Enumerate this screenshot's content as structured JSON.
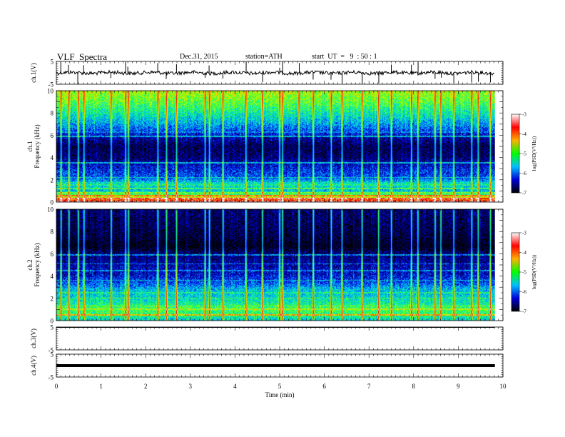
{
  "header": {
    "title": "VLF  Spectra",
    "date": "Dec.31, 2015",
    "station": "station=ATH",
    "start": "start  UT  =   9  : 50 : 1"
  },
  "colorbar": {
    "label": "log(PSD(V²/Hz))",
    "ticks": [
      "-3",
      "-4",
      "-5",
      "-6",
      "-7"
    ],
    "stops": [
      "#ffffff",
      "#ff0000",
      "#ffb000",
      "#00ff00",
      "#00c0ff",
      "#0000d8",
      "#000000"
    ]
  },
  "chart_data": [
    {
      "type": "line",
      "name": "ch1-waveform",
      "ylabel": "ch.1(V)",
      "ylim": [
        -5,
        5
      ],
      "yticks": [
        "5",
        "-5"
      ],
      "xlim": [
        0,
        10
      ],
      "baseline_value": 0,
      "spikes": [
        0.1,
        0.27,
        0.48,
        0.61,
        1.22,
        1.55,
        1.6,
        2.27,
        2.46,
        2.69,
        3.33,
        3.42,
        3.73,
        4.25,
        4.62,
        5.0,
        5.07,
        5.44,
        5.75,
        6.15,
        6.4,
        6.85,
        7.22,
        7.5,
        7.95,
        8.1,
        8.48,
        8.62,
        8.9,
        9.3,
        9.45,
        9.72
      ]
    },
    {
      "type": "heatmap",
      "name": "ch1-spectrogram",
      "ylabel": "ch.1\nFrequency  (kHz)",
      "xlim": [
        0,
        10
      ],
      "xmax_data": 9.82,
      "ylim": [
        0,
        10
      ],
      "yticks": [
        "0",
        "2",
        "4",
        "6",
        "8",
        "10"
      ],
      "color_scale": [
        -7,
        -3
      ],
      "profile": [
        {
          "f": 0.0,
          "v": -3.2
        },
        {
          "f": 0.3,
          "v": -4.2
        },
        {
          "f": 0.6,
          "v": -5.0
        },
        {
          "f": 1.0,
          "v": -5.6
        },
        {
          "f": 1.6,
          "v": -5.4
        },
        {
          "f": 2.2,
          "v": -6.0
        },
        {
          "f": 2.8,
          "v": -6.1
        },
        {
          "f": 3.3,
          "v": -6.3
        },
        {
          "f": 4.0,
          "v": -6.6
        },
        {
          "f": 5.0,
          "v": -6.7
        },
        {
          "f": 5.8,
          "v": -6.4
        },
        {
          "f": 6.4,
          "v": -6.0
        },
        {
          "f": 7.0,
          "v": -5.7
        },
        {
          "f": 8.0,
          "v": -5.3
        },
        {
          "f": 9.0,
          "v": -4.9
        },
        {
          "f": 10.0,
          "v": -4.6
        }
      ],
      "lines": [
        {
          "f": 0.3,
          "v": -3.3
        },
        {
          "f": 0.55,
          "v": -4.0
        },
        {
          "f": 0.8,
          "v": -4.8
        },
        {
          "f": 1.2,
          "v": -5.0
        },
        {
          "f": 1.5,
          "v": -5.2
        },
        {
          "f": 1.7,
          "v": -5.4
        },
        {
          "f": 2.2,
          "v": -5.5
        },
        {
          "f": 3.5,
          "v": -5.6
        },
        {
          "f": 5.9,
          "v": -5.6
        },
        {
          "f": 6.3,
          "v": -5.8
        }
      ],
      "sferics": [
        0.1,
        0.27,
        0.48,
        0.61,
        1.22,
        1.55,
        1.6,
        2.27,
        2.46,
        2.69,
        3.33,
        3.42,
        3.73,
        4.25,
        4.62,
        5.0,
        5.07,
        5.44,
        5.75,
        6.15,
        6.4,
        6.85,
        7.22,
        7.5,
        7.95,
        8.1,
        8.48,
        8.62,
        8.9,
        9.3,
        9.45,
        9.72
      ]
    },
    {
      "type": "heatmap",
      "name": "ch2-spectrogram",
      "ylabel": "ch.2\nFrequency  (kHz)",
      "xlim": [
        0,
        10
      ],
      "xmax_data": 9.82,
      "ylim": [
        0,
        10
      ],
      "yticks": [
        "0",
        "2",
        "4",
        "6",
        "8",
        "10"
      ],
      "color_scale": [
        -7,
        -3
      ],
      "profile": [
        {
          "f": 0.0,
          "v": -5.5
        },
        {
          "f": 0.4,
          "v": -5.2
        },
        {
          "f": 1.0,
          "v": -5.0
        },
        {
          "f": 1.6,
          "v": -5.3
        },
        {
          "f": 2.2,
          "v": -5.5
        },
        {
          "f": 2.8,
          "v": -5.6
        },
        {
          "f": 3.4,
          "v": -6.0
        },
        {
          "f": 4.2,
          "v": -6.3
        },
        {
          "f": 5.0,
          "v": -6.4
        },
        {
          "f": 6.0,
          "v": -6.6
        },
        {
          "f": 6.7,
          "v": -7.0
        },
        {
          "f": 7.5,
          "v": -6.8
        },
        {
          "f": 8.5,
          "v": -6.7
        },
        {
          "f": 10.0,
          "v": -6.6
        }
      ],
      "lines": [
        {
          "f": 0.5,
          "v": -4.2
        },
        {
          "f": 1.0,
          "v": -4.6
        },
        {
          "f": 1.3,
          "v": -4.8
        },
        {
          "f": 2.0,
          "v": -5.0
        },
        {
          "f": 2.5,
          "v": -5.2
        },
        {
          "f": 3.6,
          "v": -5.6
        },
        {
          "f": 4.5,
          "v": -5.8
        },
        {
          "f": 5.1,
          "v": -5.9
        },
        {
          "f": 5.9,
          "v": -5.8
        }
      ],
      "sferics": [
        0.1,
        0.27,
        0.48,
        0.61,
        1.22,
        1.55,
        1.6,
        2.27,
        2.46,
        2.69,
        3.33,
        3.42,
        3.73,
        4.25,
        4.62,
        5.0,
        5.07,
        5.44,
        5.75,
        6.15,
        6.4,
        6.85,
        7.22,
        7.5,
        7.95,
        8.1,
        8.48,
        8.62,
        8.9,
        9.3,
        9.45,
        9.72
      ]
    },
    {
      "type": "line",
      "name": "ch3-waveform",
      "ylabel": "ch.3(V)",
      "ylim": [
        -5,
        5
      ],
      "yticks": [
        "5",
        "-5"
      ],
      "xlim": [
        0,
        10
      ],
      "baseline_value": 5,
      "flat": true
    },
    {
      "type": "line",
      "name": "ch4-waveform",
      "ylabel": "ch.4(V)",
      "ylim": [
        -5,
        5
      ],
      "yticks": [
        "5",
        "-5"
      ],
      "xlim": [
        0,
        10
      ],
      "baseline_value": 0,
      "thick": true
    }
  ],
  "time_axis": {
    "label": "Time  (min)",
    "ticks": [
      "0",
      "1",
      "2",
      "3",
      "4",
      "5",
      "6",
      "7",
      "8",
      "9",
      "10"
    ]
  }
}
